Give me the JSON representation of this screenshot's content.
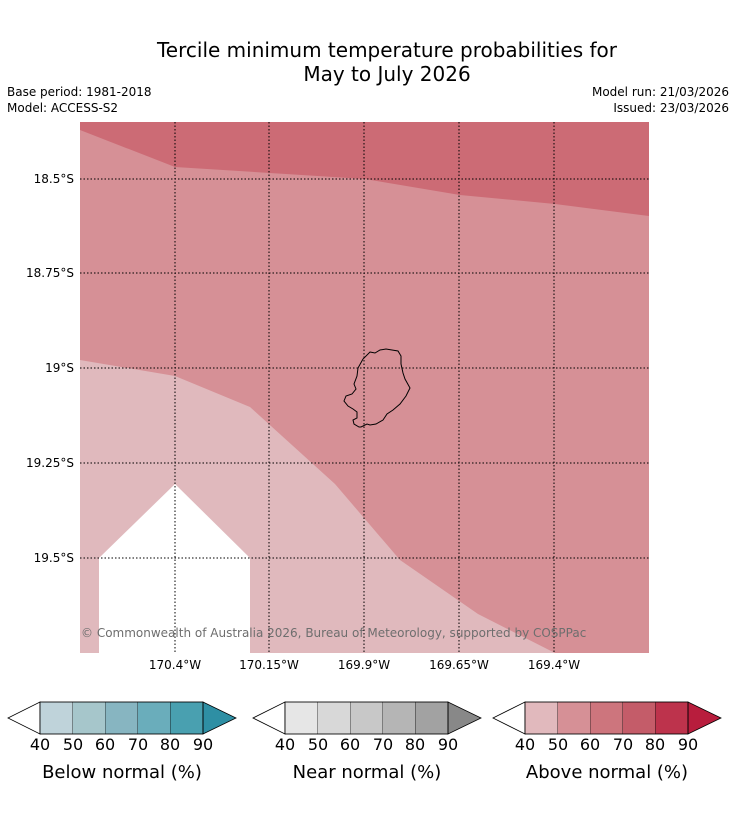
{
  "title": {
    "line1": "Tercile minimum temperature probabilities for",
    "line2": "May to July 2026"
  },
  "meta": {
    "base_period": "Base period: 1981-2018",
    "model": "Model: ACCESS-S2",
    "model_run": "Model run: 21/03/2026",
    "issued": "Issued: 23/03/2026"
  },
  "map": {
    "lat_labels": [
      "18.5°S",
      "18.75°S",
      "19°S",
      "19.25°S",
      "19.5°S"
    ],
    "lon_labels": [
      "170.4°W",
      "170.15°W",
      "169.9°W",
      "169.65°W",
      "169.4°W"
    ],
    "copyright": "© Commonwealth of Australia 2026, Bureau of Meteorology, supported by COSPPac",
    "region_colors": {
      "above_70": "#cc6b75",
      "above_60": "#d69096",
      "above_50": "#e0b9bd",
      "none": "#ffffff"
    }
  },
  "colorbars": [
    {
      "label": "Below normal (%)",
      "ticks": [
        "40",
        "50",
        "60",
        "70",
        "80",
        "90"
      ],
      "colors": [
        "#bfd3da",
        "#a6c6cb",
        "#87b5c1",
        "#6aadbb",
        "#49a0b0",
        "#2e8fa4"
      ]
    },
    {
      "label": "Near normal (%)",
      "ticks": [
        "40",
        "50",
        "60",
        "70",
        "80",
        "90"
      ],
      "colors": [
        "#e6e6e6",
        "#d8d8d8",
        "#c8c8c8",
        "#b5b5b5",
        "#a2a2a2",
        "#888888"
      ]
    },
    {
      "label": "Above normal (%)",
      "ticks": [
        "40",
        "50",
        "60",
        "70",
        "80",
        "90"
      ],
      "colors": [
        "#e1b9bd",
        "#d69096",
        "#cd757d",
        "#c45c69",
        "#bd334c",
        "#b81d3d"
      ]
    }
  ]
}
